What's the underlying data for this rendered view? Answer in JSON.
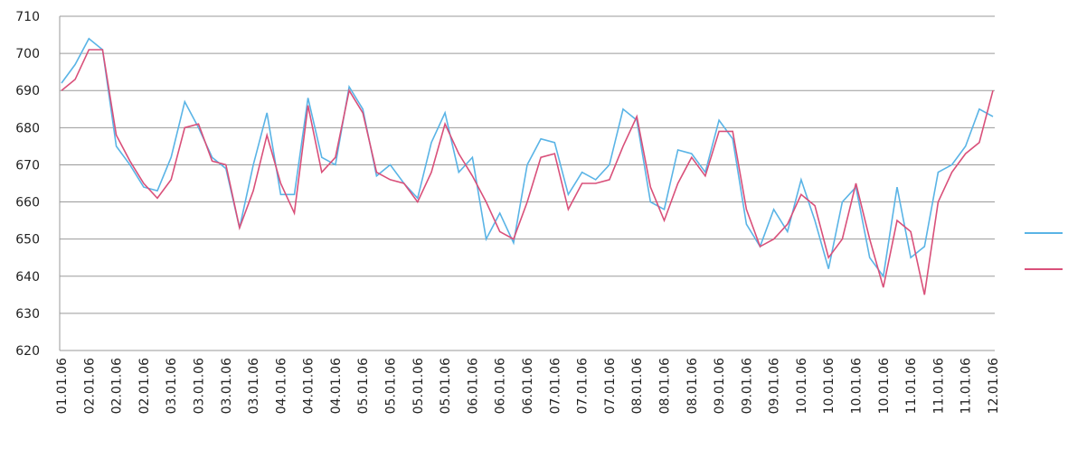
{
  "chart_data": {
    "type": "line",
    "categories": [
      "01.01.06",
      null,
      "02.01.06",
      null,
      "02.01.06",
      null,
      "02.01.06",
      null,
      "03.01.06",
      null,
      "03.01.06",
      null,
      "03.01.06",
      null,
      "03.01.06",
      null,
      "04.01.06",
      null,
      "04.01.06",
      null,
      "04.01.06",
      null,
      "05.01.06",
      null,
      "05.01.06",
      null,
      "05.01.06",
      null,
      "05.01.06",
      null,
      "06.01.06",
      null,
      "06.01.06",
      null,
      "06.01.06",
      null,
      "07.01.06",
      null,
      "07.01.06",
      null,
      "07.01.06",
      null,
      "08.01.06",
      null,
      "08.01.06",
      null,
      "08.01.06",
      null,
      "09.01.06",
      null,
      "09.01.06",
      null,
      "09.01.06",
      null,
      "10.01.06",
      null,
      "10.01.06",
      null,
      "10.01.06",
      null,
      "10.01.06",
      null,
      "11.01.06",
      null,
      "11.01.06",
      null,
      "11.01.06",
      null,
      "12.01.06"
    ],
    "series": [
      {
        "color": "#5ab4e6",
        "values": [
          692,
          697,
          704,
          701,
          675,
          670,
          664,
          663,
          672,
          687,
          680,
          672,
          669,
          653,
          670,
          684,
          662,
          662,
          688,
          672,
          670,
          691,
          685,
          667,
          670,
          665,
          661,
          676,
          684,
          668,
          672,
          650,
          657,
          649,
          670,
          677,
          676,
          662,
          668,
          666,
          670,
          685,
          682,
          660,
          658,
          674,
          673,
          668,
          682,
          677,
          654,
          648,
          658,
          652,
          666,
          655,
          642,
          660,
          664,
          645,
          640,
          664,
          645,
          648,
          668,
          670,
          675,
          685,
          683
        ]
      },
      {
        "color": "#d9507a",
        "values": [
          690,
          693,
          701,
          701,
          678,
          671,
          665,
          661,
          666,
          680,
          681,
          671,
          670,
          653,
          663,
          678,
          665,
          657,
          686,
          668,
          672,
          690,
          684,
          668,
          666,
          665,
          660,
          668,
          681,
          673,
          667,
          660,
          652,
          650,
          660,
          672,
          673,
          658,
          665,
          665,
          666,
          675,
          683,
          664,
          655,
          665,
          672,
          667,
          679,
          679,
          658,
          648,
          650,
          654,
          662,
          659,
          645,
          650,
          665,
          650,
          637,
          655,
          652,
          635,
          660,
          668,
          673,
          676,
          690
        ]
      }
    ],
    "ylim": [
      620,
      710
    ],
    "yticks": [
      620,
      630,
      640,
      650,
      660,
      670,
      680,
      690,
      700,
      710
    ],
    "grid": true
  }
}
